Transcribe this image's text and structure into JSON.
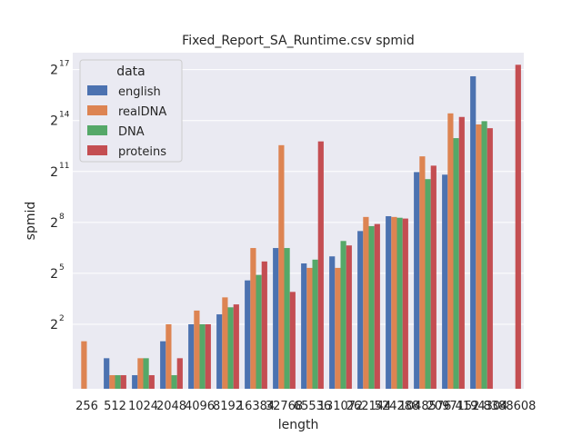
{
  "chart_data": {
    "type": "bar",
    "title": "Fixed_Report_SA_Runtime.csv spmid",
    "xlabel": "length",
    "ylabel": "spmid",
    "y_scale": "log2",
    "ylim_exponent": [
      -1.8,
      18
    ],
    "y_ticks": [
      {
        "base": "2",
        "exp": "2",
        "value": 4
      },
      {
        "base": "2",
        "exp": "5",
        "value": 32
      },
      {
        "base": "2",
        "exp": "8",
        "value": 256
      },
      {
        "base": "2",
        "exp": "11",
        "value": 2048
      },
      {
        "base": "2",
        "exp": "14",
        "value": 16384
      },
      {
        "base": "2",
        "exp": "17",
        "value": 131072
      }
    ],
    "grid": true,
    "legend": {
      "title": "data",
      "position": "top-left"
    },
    "categories": [
      "256",
      "512",
      "1024",
      "2048",
      "4096",
      "8192",
      "16384",
      "32768",
      "65536",
      "131072",
      "262144",
      "524288",
      "1048576",
      "2097152",
      "4194304",
      "8388608"
    ],
    "series": [
      {
        "name": "english",
        "color": "#4c72b0",
        "values": [
          null,
          1,
          0.5,
          2,
          4,
          6,
          24,
          90,
          48,
          64,
          180,
          330,
          2000,
          1800,
          100000,
          null
        ]
      },
      {
        "name": "realDNA",
        "color": "#dd8452",
        "values": [
          2,
          0.5,
          1,
          4,
          7,
          12,
          90,
          6000,
          40,
          40,
          320,
          320,
          3800,
          22000,
          14000,
          null
        ]
      },
      {
        "name": "DNA",
        "color": "#55a868",
        "values": [
          null,
          0.5,
          1,
          0.5,
          4,
          8,
          30,
          90,
          56,
          120,
          220,
          310,
          1500,
          8000,
          16000,
          null
        ]
      },
      {
        "name": "proteins",
        "color": "#c44e52",
        "values": [
          null,
          0.5,
          0.5,
          1,
          4,
          9,
          52,
          15,
          7000,
          100,
          240,
          300,
          2600,
          19000,
          12000,
          160000
        ]
      }
    ]
  }
}
